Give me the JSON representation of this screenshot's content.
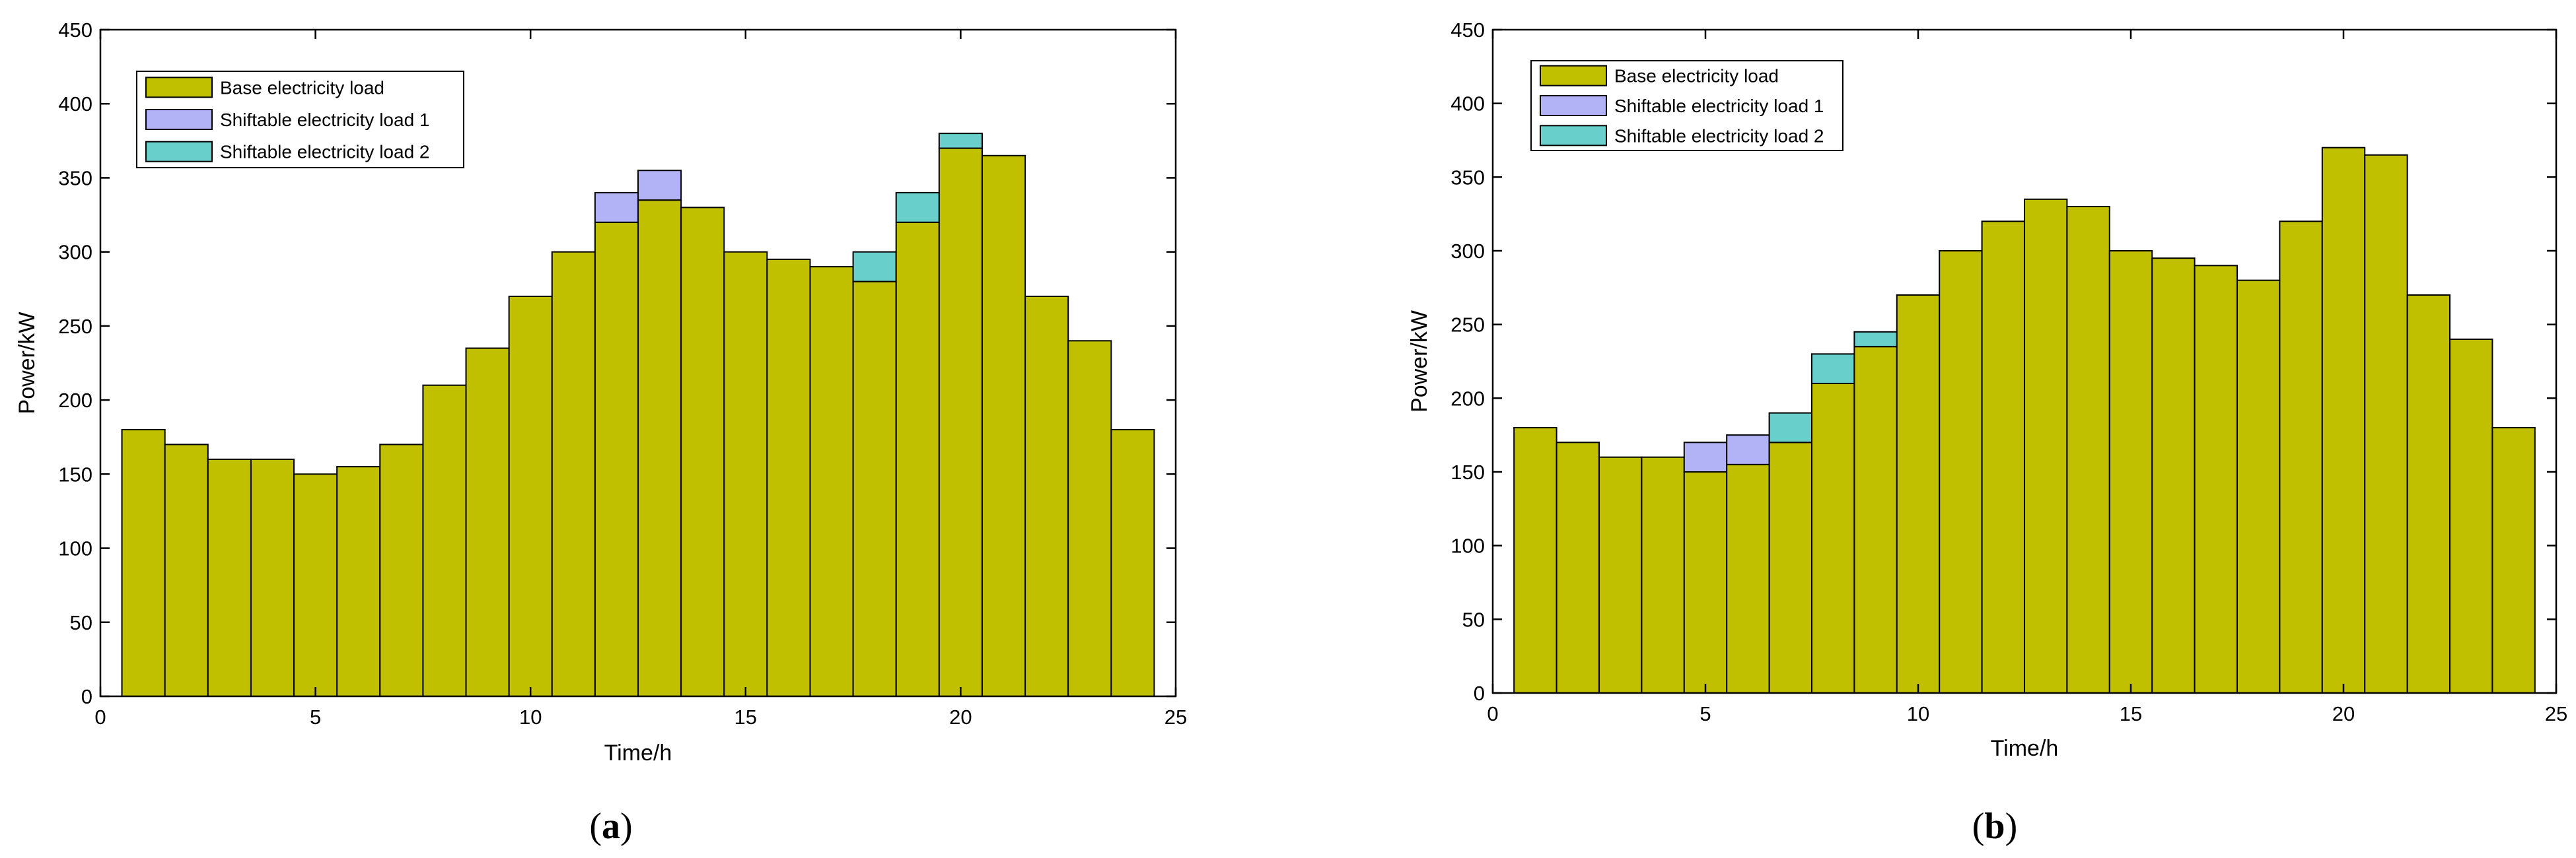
{
  "colors": {
    "base": "#c0bf00",
    "shift1": "#b2b3f7",
    "shift2": "#68cfcb",
    "bar_edge": "#000000"
  },
  "chart_data": [
    {
      "type": "bar",
      "stacked": true,
      "caption_letter": "a",
      "caption_open": "(",
      "caption_close": ")",
      "xlabel": "Time/h",
      "ylabel": "Power/kW",
      "xlim": [
        0,
        25
      ],
      "ylim": [
        0,
        450
      ],
      "x_ticks": [
        "0",
        "5",
        "10",
        "15",
        "20",
        "25"
      ],
      "y_ticks": [
        "0",
        "50",
        "100",
        "150",
        "200",
        "250",
        "300",
        "350",
        "400",
        "450"
      ],
      "legend_position": "top-left",
      "categories": [
        1,
        2,
        3,
        4,
        5,
        6,
        7,
        8,
        9,
        10,
        11,
        12,
        13,
        14,
        15,
        16,
        17,
        18,
        19,
        20,
        21,
        22,
        23,
        24
      ],
      "series": [
        {
          "name": "Base electricity load",
          "values": [
            180,
            170,
            160,
            160,
            150,
            155,
            170,
            210,
            235,
            270,
            300,
            320,
            335,
            330,
            300,
            295,
            290,
            280,
            320,
            370,
            365,
            270,
            240,
            180
          ]
        },
        {
          "name": "Shiftable electricity load 1",
          "values": [
            0,
            0,
            0,
            0,
            0,
            0,
            0,
            0,
            0,
            0,
            0,
            20,
            20,
            0,
            0,
            0,
            0,
            0,
            0,
            0,
            0,
            0,
            0,
            0
          ]
        },
        {
          "name": "Shiftable electricity load 2",
          "values": [
            0,
            0,
            0,
            0,
            0,
            0,
            0,
            0,
            0,
            0,
            0,
            0,
            0,
            0,
            0,
            0,
            0,
            20,
            20,
            10,
            0,
            0,
            0,
            0
          ]
        }
      ]
    },
    {
      "type": "bar",
      "stacked": true,
      "caption_letter": "b",
      "caption_open": "(",
      "caption_close": ")",
      "xlabel": "Time/h",
      "ylabel": "Power/kW",
      "xlim": [
        0,
        25
      ],
      "ylim": [
        0,
        450
      ],
      "x_ticks": [
        "0",
        "5",
        "10",
        "15",
        "20",
        "25"
      ],
      "y_ticks": [
        "0",
        "50",
        "100",
        "150",
        "200",
        "250",
        "300",
        "350",
        "400",
        "450"
      ],
      "legend_position": "top-left",
      "categories": [
        1,
        2,
        3,
        4,
        5,
        6,
        7,
        8,
        9,
        10,
        11,
        12,
        13,
        14,
        15,
        16,
        17,
        18,
        19,
        20,
        21,
        22,
        23,
        24
      ],
      "series": [
        {
          "name": "Base electricity load",
          "values": [
            180,
            170,
            160,
            160,
            150,
            155,
            170,
            210,
            235,
            270,
            300,
            320,
            335,
            330,
            300,
            295,
            290,
            280,
            320,
            370,
            365,
            270,
            240,
            180
          ]
        },
        {
          "name": "Shiftable electricity load 1",
          "values": [
            0,
            0,
            0,
            0,
            20,
            20,
            0,
            0,
            0,
            0,
            0,
            0,
            0,
            0,
            0,
            0,
            0,
            0,
            0,
            0,
            0,
            0,
            0,
            0
          ]
        },
        {
          "name": "Shiftable electricity load 2",
          "values": [
            0,
            0,
            0,
            0,
            0,
            0,
            20,
            20,
            10,
            0,
            0,
            0,
            0,
            0,
            0,
            0,
            0,
            0,
            0,
            0,
            0,
            0,
            0,
            0
          ]
        }
      ]
    }
  ]
}
